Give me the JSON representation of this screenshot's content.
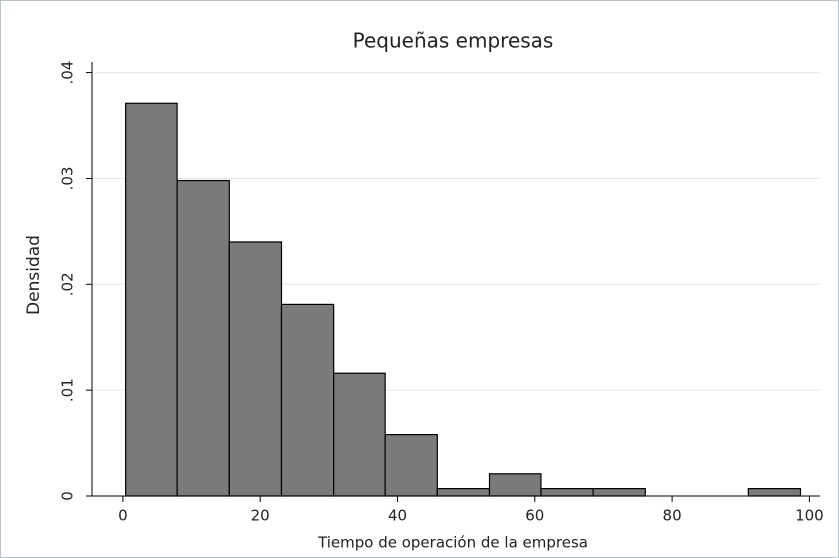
{
  "chart_data": {
    "type": "histogram",
    "title": "Pequeñas empresas",
    "x_label": "Tiempo de operación de la empresa",
    "y_label": "Densidad",
    "bins": [
      0.4,
      7.9,
      15.5,
      23.1,
      30.7,
      38.2,
      45.8,
      53.4,
      60.9,
      68.5,
      76.1,
      83.6,
      91.1,
      98.7
    ],
    "values": [
      0.0371,
      0.0298,
      0.024,
      0.0181,
      0.0116,
      0.0058,
      0.0007,
      0.0021,
      0.0007,
      0.0007,
      0,
      0,
      0.0007
    ],
    "color": "#7a7a7a",
    "xlim": [
      -4.5,
      103
    ],
    "xticks": [
      0,
      20,
      40,
      60,
      80,
      100
    ],
    "ylim": [
      0,
      0.041
    ],
    "yticks": [
      0,
      {
        "value": 0.01,
        "label": ".01"
      },
      {
        "value": 0.02,
        "label": ".02"
      },
      {
        "value": 0.03,
        "label": ".03"
      },
      {
        "value": 0.04,
        "label": ".04"
      }
    ],
    "grid": true
  }
}
